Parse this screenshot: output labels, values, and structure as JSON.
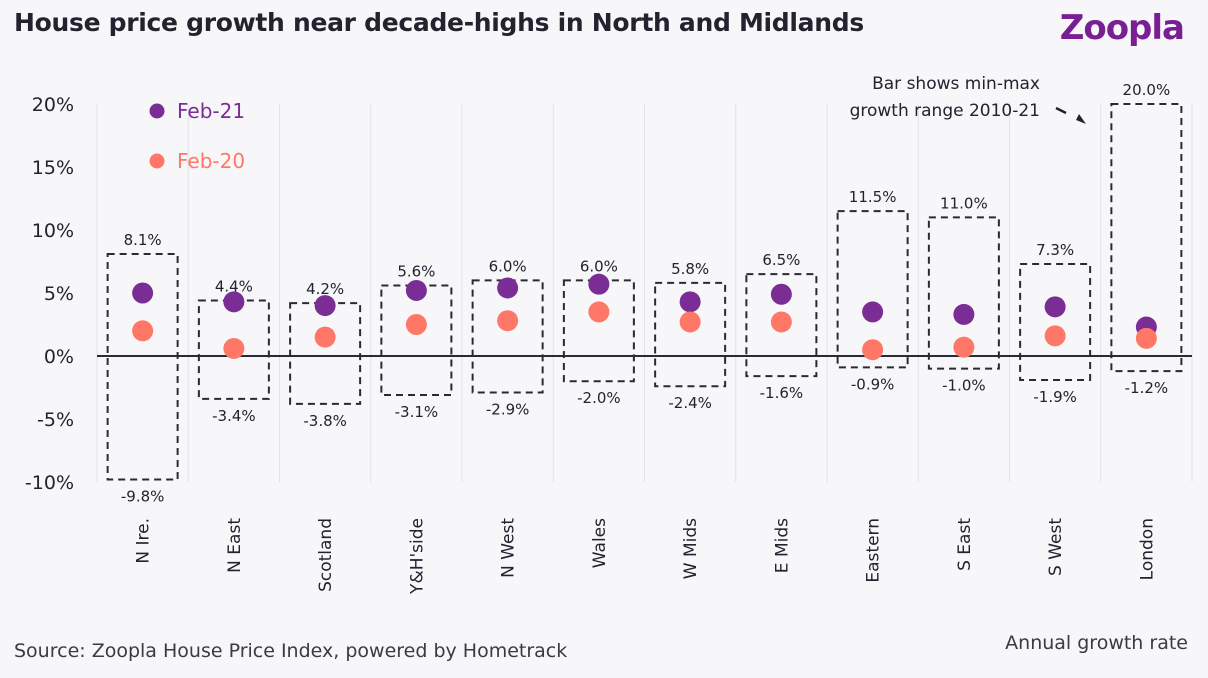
{
  "header": {
    "title": "House price growth near decade-highs in North and Midlands",
    "logo": "Zoopla"
  },
  "footer": {
    "source": "Source: Zoopla House Price Index, powered by Hometrack",
    "units": "Annual growth rate"
  },
  "colors": {
    "feb21": "#7b2d96",
    "feb20": "#ff7867",
    "range_box": "#2a2a33",
    "grid": "#e2e2e8",
    "zero_line": "#2a2a33"
  },
  "chart_data": {
    "type": "scatter",
    "title": "House price growth near decade-highs in North and Midlands",
    "xlabel": "",
    "ylabel": "Annual growth rate",
    "ylim": [
      -10,
      20
    ],
    "yticks": [
      20,
      15,
      10,
      5,
      0,
      -5,
      -10
    ],
    "ytick_labels": [
      "20%",
      "15%",
      "10%",
      "5%",
      "0%",
      "-5%",
      "-10%"
    ],
    "grid": "vertical category separators",
    "legend_position": "top-left",
    "annotation": {
      "lines": [
        "Bar shows min-max",
        "growth range 2010-21"
      ],
      "points_to": "London"
    },
    "categories": [
      "N Ire.",
      "N East",
      "Scotland",
      "Y&H'side",
      "N West",
      "Wales",
      "W Mids",
      "E Mids",
      "Eastern",
      "S East",
      "S West",
      "London"
    ],
    "range_max": [
      8.1,
      4.4,
      4.2,
      5.6,
      6.0,
      6.0,
      5.8,
      6.5,
      11.5,
      11.0,
      7.3,
      20.0
    ],
    "range_min": [
      -9.8,
      -3.4,
      -3.8,
      -3.1,
      -2.9,
      -2.0,
      -2.4,
      -1.6,
      -0.9,
      -1.0,
      -1.9,
      -1.2
    ],
    "range_max_labels": [
      "8.1%",
      "4.4%",
      "4.2%",
      "5.6%",
      "6.0%",
      "6.0%",
      "5.8%",
      "6.5%",
      "11.5%",
      "11.0%",
      "7.3%",
      "20.0%"
    ],
    "range_min_labels": [
      "-9.8%",
      "-3.4%",
      "-3.8%",
      "-3.1%",
      "-2.9%",
      "-2.0%",
      "-2.4%",
      "-1.6%",
      "-0.9%",
      "-1.0%",
      "-1.9%",
      "-1.2%"
    ],
    "series": [
      {
        "name": "Feb-21",
        "color": "#7b2d96",
        "values": [
          5.0,
          4.3,
          4.0,
          5.2,
          5.4,
          5.7,
          4.3,
          4.9,
          3.5,
          3.3,
          3.9,
          2.3
        ]
      },
      {
        "name": "Feb-20",
        "color": "#ff7867",
        "values": [
          2.0,
          0.6,
          1.5,
          2.5,
          2.8,
          3.5,
          2.7,
          2.7,
          0.5,
          0.7,
          1.6,
          1.4
        ]
      }
    ]
  }
}
